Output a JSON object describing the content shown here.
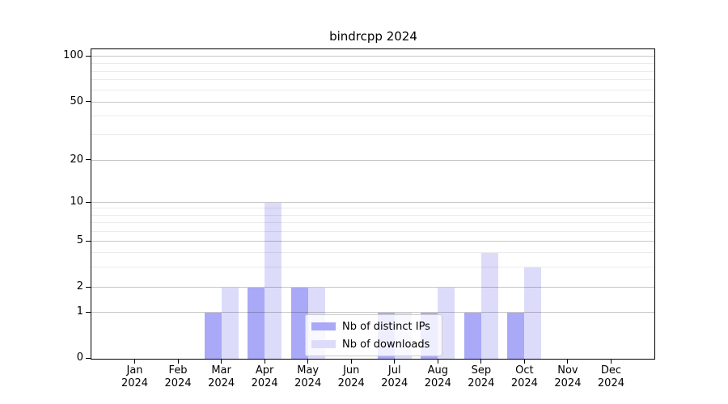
{
  "chart_data": {
    "type": "bar",
    "title": "bindrcpp 2024",
    "categories": [
      "Jan",
      "Feb",
      "Mar",
      "Apr",
      "May",
      "Jun",
      "Jul",
      "Aug",
      "Sep",
      "Oct",
      "Nov",
      "Dec"
    ],
    "year_label": "2024",
    "series": [
      {
        "name": "Nb of distinct IPs",
        "color": "#a9a9f7",
        "values": [
          0,
          0,
          1,
          2,
          2,
          0,
          1,
          1,
          1,
          1,
          0,
          0
        ]
      },
      {
        "name": "Nb of downloads",
        "color": "#dcdcfa",
        "values": [
          0,
          0,
          2,
          10,
          2,
          0,
          1,
          2,
          4,
          3,
          0,
          0
        ]
      }
    ],
    "y_axis": {
      "ticks": [
        0,
        1,
        2,
        5,
        10,
        20,
        50,
        100
      ],
      "minor_gridlines": [
        3,
        4,
        6,
        7,
        8,
        9,
        30,
        40,
        60,
        70,
        80,
        90
      ],
      "scale": "log-above-1",
      "range": [
        0,
        110
      ]
    },
    "x_axis": {
      "label_lines": 2
    },
    "grid": true,
    "legend": {
      "position": "inside-bottom-center",
      "entries": [
        "Nb of distinct IPs",
        "Nb of downloads"
      ]
    }
  },
  "colors": {
    "background": "#ffffff",
    "bar_distinct_ips": "#a9a9f7",
    "bar_downloads": "#dcdcfa",
    "grid_major": "rgba(0,0,0,0.22)",
    "grid_minor": "rgba(0,0,0,0.08)",
    "axis": "#000000",
    "legend_border": "#cccccc"
  }
}
